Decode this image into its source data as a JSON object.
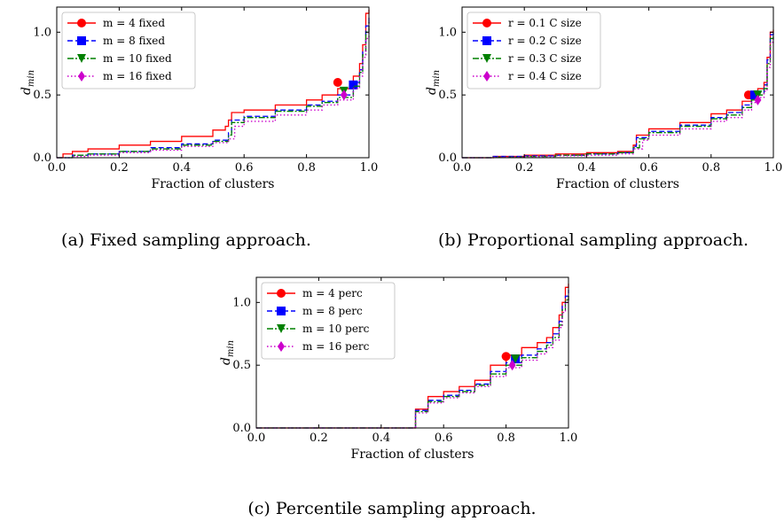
{
  "chart_data": [
    {
      "type": "line",
      "caption": "(a) Fixed sampling approach.",
      "xlabel": "Fraction of clusters",
      "ylabel": "d_min",
      "xlim": [
        0.0,
        1.0
      ],
      "ylim": [
        0.0,
        1.2
      ],
      "xticks": [
        "0.0",
        "0.2",
        "0.4",
        "0.6",
        "0.8",
        "1.0"
      ],
      "yticks": [
        "0.0",
        "0.5",
        "1.0"
      ],
      "legend_position": "top-left",
      "series": [
        {
          "name": "m = 4 fixed",
          "color": "#ff0000",
          "dash": "solid",
          "marker": "circle",
          "x": [
            0,
            0.02,
            0.05,
            0.1,
            0.2,
            0.3,
            0.4,
            0.5,
            0.54,
            0.55,
            0.56,
            0.6,
            0.7,
            0.8,
            0.85,
            0.9,
            0.95,
            0.97,
            0.98,
            0.99,
            1.0
          ],
          "y": [
            0.0,
            0.03,
            0.05,
            0.07,
            0.1,
            0.13,
            0.17,
            0.22,
            0.25,
            0.3,
            0.36,
            0.38,
            0.42,
            0.46,
            0.5,
            0.55,
            0.65,
            0.75,
            0.9,
            1.15,
            1.18
          ],
          "marker_point": [
            0.9,
            0.6
          ]
        },
        {
          "name": "m = 8 fixed",
          "color": "#0000ff",
          "dash": "dashed",
          "marker": "square",
          "x": [
            0,
            0.05,
            0.1,
            0.2,
            0.3,
            0.4,
            0.5,
            0.55,
            0.56,
            0.6,
            0.7,
            0.8,
            0.85,
            0.9,
            0.95,
            0.97,
            0.98,
            0.99,
            1.0
          ],
          "y": [
            0.0,
            0.02,
            0.03,
            0.05,
            0.08,
            0.11,
            0.14,
            0.2,
            0.3,
            0.33,
            0.38,
            0.42,
            0.45,
            0.5,
            0.6,
            0.7,
            0.85,
            1.05,
            1.12
          ],
          "marker_point": [
            0.95,
            0.58
          ]
        },
        {
          "name": "m = 10 fixed",
          "color": "#008000",
          "dash": "dashdot",
          "marker": "triangle-down",
          "x": [
            0,
            0.05,
            0.1,
            0.2,
            0.3,
            0.4,
            0.5,
            0.55,
            0.56,
            0.6,
            0.7,
            0.8,
            0.85,
            0.9,
            0.95,
            0.97,
            0.98,
            0.99,
            1.0
          ],
          "y": [
            0.0,
            0.02,
            0.03,
            0.05,
            0.07,
            0.1,
            0.13,
            0.18,
            0.28,
            0.32,
            0.37,
            0.41,
            0.44,
            0.48,
            0.57,
            0.68,
            0.82,
            1.0,
            1.08
          ],
          "marker_point": [
            0.92,
            0.53
          ]
        },
        {
          "name": "m = 16 fixed",
          "color": "#cc00cc",
          "dash": "dotted",
          "marker": "diamond",
          "x": [
            0,
            0.05,
            0.1,
            0.2,
            0.3,
            0.4,
            0.5,
            0.55,
            0.57,
            0.6,
            0.7,
            0.8,
            0.85,
            0.9,
            0.95,
            0.97,
            0.98,
            0.99,
            1.0
          ],
          "y": [
            0.0,
            0.01,
            0.02,
            0.04,
            0.06,
            0.09,
            0.12,
            0.15,
            0.25,
            0.29,
            0.34,
            0.38,
            0.42,
            0.46,
            0.55,
            0.65,
            0.8,
            0.95,
            1.05
          ],
          "marker_point": [
            0.92,
            0.5
          ]
        }
      ]
    },
    {
      "type": "line",
      "caption": "(b) Proportional sampling approach.",
      "xlabel": "Fraction of clusters",
      "ylabel": "d_min",
      "xlim": [
        0.0,
        1.0
      ],
      "ylim": [
        0.0,
        1.2
      ],
      "xticks": [
        "0.0",
        "0.2",
        "0.4",
        "0.6",
        "0.8",
        "1.0"
      ],
      "yticks": [
        "0.0",
        "0.5",
        "1.0"
      ],
      "legend_position": "top-left",
      "series": [
        {
          "name": "r = 0.1 C size",
          "color": "#ff0000",
          "dash": "solid",
          "marker": "circle",
          "x": [
            0,
            0.1,
            0.2,
            0.3,
            0.4,
            0.5,
            0.55,
            0.56,
            0.6,
            0.7,
            0.8,
            0.85,
            0.9,
            0.93,
            0.95,
            0.97,
            0.98,
            0.99,
            1.0
          ],
          "y": [
            0.0,
            0.01,
            0.02,
            0.03,
            0.04,
            0.05,
            0.1,
            0.18,
            0.23,
            0.28,
            0.35,
            0.38,
            0.45,
            0.5,
            0.55,
            0.6,
            0.8,
            1.0,
            1.02
          ],
          "marker_point": [
            0.92,
            0.5
          ]
        },
        {
          "name": "r = 0.2 C size",
          "color": "#0000ff",
          "dash": "dashed",
          "marker": "square",
          "x": [
            0,
            0.1,
            0.2,
            0.3,
            0.4,
            0.5,
            0.55,
            0.56,
            0.6,
            0.7,
            0.8,
            0.85,
            0.9,
            0.93,
            0.95,
            0.97,
            0.98,
            0.99,
            1.0
          ],
          "y": [
            0.0,
            0.01,
            0.015,
            0.02,
            0.03,
            0.04,
            0.09,
            0.16,
            0.21,
            0.26,
            0.32,
            0.36,
            0.42,
            0.48,
            0.52,
            0.58,
            0.78,
            0.98,
            1.0
          ],
          "marker_point": [
            0.94,
            0.5
          ]
        },
        {
          "name": "r = 0.3 C size",
          "color": "#008000",
          "dash": "dashdot",
          "marker": "triangle-down",
          "x": [
            0,
            0.1,
            0.2,
            0.3,
            0.4,
            0.5,
            0.55,
            0.57,
            0.6,
            0.7,
            0.8,
            0.85,
            0.9,
            0.93,
            0.95,
            0.97,
            0.98,
            0.99,
            1.0
          ],
          "y": [
            0.0,
            0.005,
            0.01,
            0.02,
            0.03,
            0.04,
            0.08,
            0.15,
            0.2,
            0.25,
            0.31,
            0.34,
            0.4,
            0.46,
            0.5,
            0.55,
            0.75,
            0.95,
            0.98
          ],
          "marker_point": [
            0.95,
            0.5
          ]
        },
        {
          "name": "r = 0.4 C size",
          "color": "#cc00cc",
          "dash": "dotted",
          "marker": "diamond",
          "x": [
            0,
            0.1,
            0.2,
            0.3,
            0.4,
            0.5,
            0.55,
            0.58,
            0.6,
            0.7,
            0.8,
            0.85,
            0.9,
            0.93,
            0.95,
            0.97,
            0.98,
            0.99,
            1.0
          ],
          "y": [
            0.0,
            0.005,
            0.01,
            0.015,
            0.02,
            0.03,
            0.07,
            0.14,
            0.18,
            0.23,
            0.29,
            0.32,
            0.38,
            0.44,
            0.48,
            0.53,
            0.72,
            0.92,
            0.96
          ],
          "marker_point": [
            0.95,
            0.46
          ]
        }
      ]
    },
    {
      "type": "line",
      "caption": "(c) Percentile sampling approach.",
      "xlabel": "Fraction of clusters",
      "ylabel": "d_min",
      "xlim": [
        0.0,
        1.0
      ],
      "ylim": [
        0.0,
        1.2
      ],
      "xticks": [
        "0.0",
        "0.2",
        "0.4",
        "0.6",
        "0.8",
        "1.0"
      ],
      "yticks": [
        "0.0",
        "0.5",
        "1.0"
      ],
      "legend_position": "top-left",
      "series": [
        {
          "name": "m = 4 perc",
          "color": "#ff0000",
          "dash": "solid",
          "marker": "circle",
          "x": [
            0,
            0.5,
            0.51,
            0.55,
            0.6,
            0.65,
            0.7,
            0.75,
            0.8,
            0.85,
            0.9,
            0.93,
            0.95,
            0.97,
            0.98,
            0.99,
            1.0
          ],
          "y": [
            0.0,
            0.0,
            0.15,
            0.25,
            0.29,
            0.33,
            0.38,
            0.5,
            0.58,
            0.64,
            0.68,
            0.72,
            0.8,
            0.9,
            1.0,
            1.12,
            1.15
          ],
          "marker_point": [
            0.8,
            0.57
          ]
        },
        {
          "name": "m = 8 perc",
          "color": "#0000ff",
          "dash": "dashed",
          "marker": "square",
          "x": [
            0,
            0.5,
            0.51,
            0.55,
            0.6,
            0.65,
            0.7,
            0.75,
            0.8,
            0.85,
            0.9,
            0.93,
            0.95,
            0.97,
            0.98,
            0.99,
            1.0
          ],
          "y": [
            0.0,
            0.0,
            0.14,
            0.22,
            0.26,
            0.3,
            0.35,
            0.45,
            0.52,
            0.58,
            0.63,
            0.68,
            0.75,
            0.85,
            0.97,
            1.05,
            1.1
          ],
          "marker_point": [
            0.83,
            0.55
          ]
        },
        {
          "name": "m = 10 perc",
          "color": "#008000",
          "dash": "dashdot",
          "marker": "triangle-down",
          "x": [
            0,
            0.5,
            0.51,
            0.55,
            0.6,
            0.65,
            0.7,
            0.75,
            0.8,
            0.85,
            0.9,
            0.93,
            0.95,
            0.97,
            0.98,
            0.99,
            1.0
          ],
          "y": [
            0.0,
            0.0,
            0.13,
            0.21,
            0.25,
            0.29,
            0.34,
            0.43,
            0.5,
            0.56,
            0.61,
            0.66,
            0.72,
            0.82,
            0.94,
            1.02,
            1.06
          ],
          "marker_point": [
            0.83,
            0.55
          ]
        },
        {
          "name": "m = 16 perc",
          "color": "#cc00cc",
          "dash": "dotted",
          "marker": "diamond",
          "x": [
            0,
            0.5,
            0.51,
            0.55,
            0.6,
            0.65,
            0.7,
            0.75,
            0.8,
            0.85,
            0.9,
            0.93,
            0.95,
            0.97,
            0.98,
            0.99,
            1.0
          ],
          "y": [
            0.0,
            0.0,
            0.12,
            0.2,
            0.24,
            0.28,
            0.33,
            0.41,
            0.48,
            0.54,
            0.59,
            0.64,
            0.7,
            0.8,
            0.92,
            1.0,
            1.04
          ],
          "marker_point": [
            0.82,
            0.5
          ]
        }
      ]
    }
  ]
}
